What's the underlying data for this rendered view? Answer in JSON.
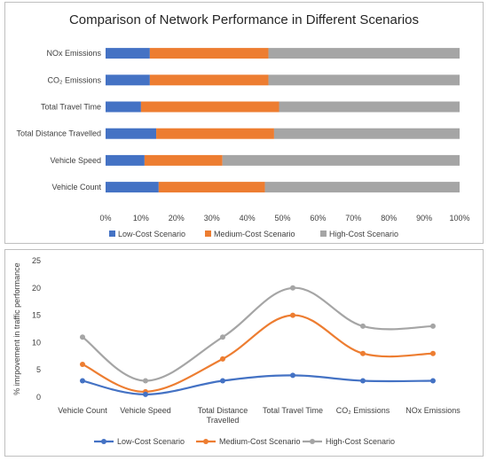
{
  "chart_data": [
    {
      "type": "bar",
      "orientation": "horizontal",
      "stacked": "percent",
      "title": "Comparison of Network Performance in Different Scenarios",
      "categories": [
        "NOx Emissions",
        "CO₂ Emissions",
        "Total Travel Time",
        "Total Distance Travelled",
        "Vehicle Speed",
        "Vehicle Count"
      ],
      "series": [
        {
          "name": "Low-Cost Scenario",
          "color": "#4472c4",
          "values": [
            12.5,
            12.5,
            10,
            14.3,
            11,
            15
          ]
        },
        {
          "name": "Medium-Cost Scenario",
          "color": "#ed7d31",
          "values": [
            33.5,
            33.5,
            39,
            33.3,
            22,
            30
          ]
        },
        {
          "name": "High-Cost Scenario",
          "color": "#a5a5a5",
          "values": [
            54,
            54,
            51,
            52.4,
            67,
            55
          ]
        }
      ],
      "xlim": [
        0,
        100
      ],
      "xticks": [
        "0%",
        "10%",
        "20%",
        "30%",
        "40%",
        "50%",
        "60%",
        "70%",
        "80%",
        "90%",
        "100%"
      ],
      "legend": "bottom",
      "grid": false
    },
    {
      "type": "line",
      "smooth": true,
      "categories": [
        "Vehicle Count",
        "Vehicle Speed",
        "Total Distance Travelled",
        "Total Travel Time",
        "CO₂ Emissions",
        "NOx Emissions"
      ],
      "category_lines": [
        [
          "Vehicle Count"
        ],
        [
          "Vehicle Speed"
        ],
        [
          "Total Distance",
          "Travelled"
        ],
        [
          "Total Travel Time"
        ],
        [
          "CO₂ Emissions"
        ],
        [
          "NOx Emissions"
        ]
      ],
      "ylabel": "% imrpovement in traffic performance",
      "ylim": [
        0,
        25
      ],
      "yticks": [
        0,
        5,
        10,
        15,
        20,
        25
      ],
      "series": [
        {
          "name": "Low-Cost Scenario",
          "color": "#4472c4",
          "values": [
            3,
            0.5,
            3,
            4,
            3,
            3
          ]
        },
        {
          "name": "Medium-Cost Scenario",
          "color": "#ed7d31",
          "values": [
            6,
            1,
            7,
            15,
            8,
            8
          ]
        },
        {
          "name": "High-Cost Scenario",
          "color": "#a5a5a5",
          "values": [
            11,
            3,
            11,
            20,
            13,
            13
          ]
        }
      ],
      "legend": "bottom",
      "grid": false
    }
  ]
}
